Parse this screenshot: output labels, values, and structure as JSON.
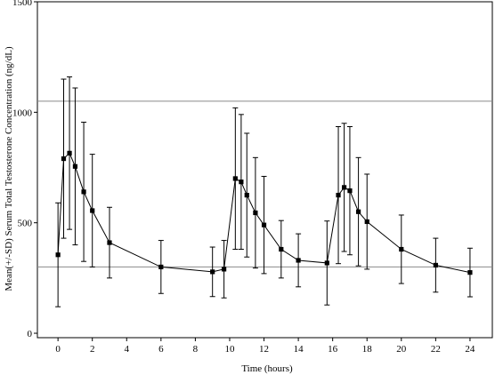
{
  "chart_data": {
    "type": "line",
    "xlabel": "Time (hours)",
    "ylabel": "Mean(+/-SD) Serum Total Testosterone Concentration (ng/dL)",
    "xlim": [
      -1.2,
      25.3
    ],
    "ylim": [
      -20,
      1500
    ],
    "xticks": [
      0,
      2,
      4,
      6,
      8,
      10,
      12,
      14,
      16,
      18,
      20,
      22,
      24
    ],
    "yticks": [
      0,
      500,
      1000,
      1500
    ],
    "reference_lines": [
      300,
      1050
    ],
    "grid": false,
    "legend": "none",
    "series": [
      {
        "x": [
          0,
          0.33,
          0.67,
          1,
          1.5,
          2,
          3,
          6,
          9,
          9.67,
          10.33,
          10.67,
          11,
          11.5,
          12,
          13,
          14,
          15.67,
          16.33,
          16.67,
          17,
          17.5,
          18,
          20,
          22,
          24
        ],
        "y": [
          355,
          790,
          815,
          755,
          640,
          555,
          410,
          300,
          278,
          290,
          700,
          685,
          625,
          545,
          490,
          380,
          330,
          318,
          625,
          660,
          645,
          550,
          505,
          380,
          308,
          275
        ],
        "yerr": [
          235,
          360,
          345,
          355,
          315,
          255,
          160,
          120,
          112,
          130,
          320,
          305,
          280,
          250,
          220,
          130,
          120,
          190,
          310,
          290,
          290,
          245,
          215,
          155,
          122,
          110
        ]
      }
    ]
  }
}
